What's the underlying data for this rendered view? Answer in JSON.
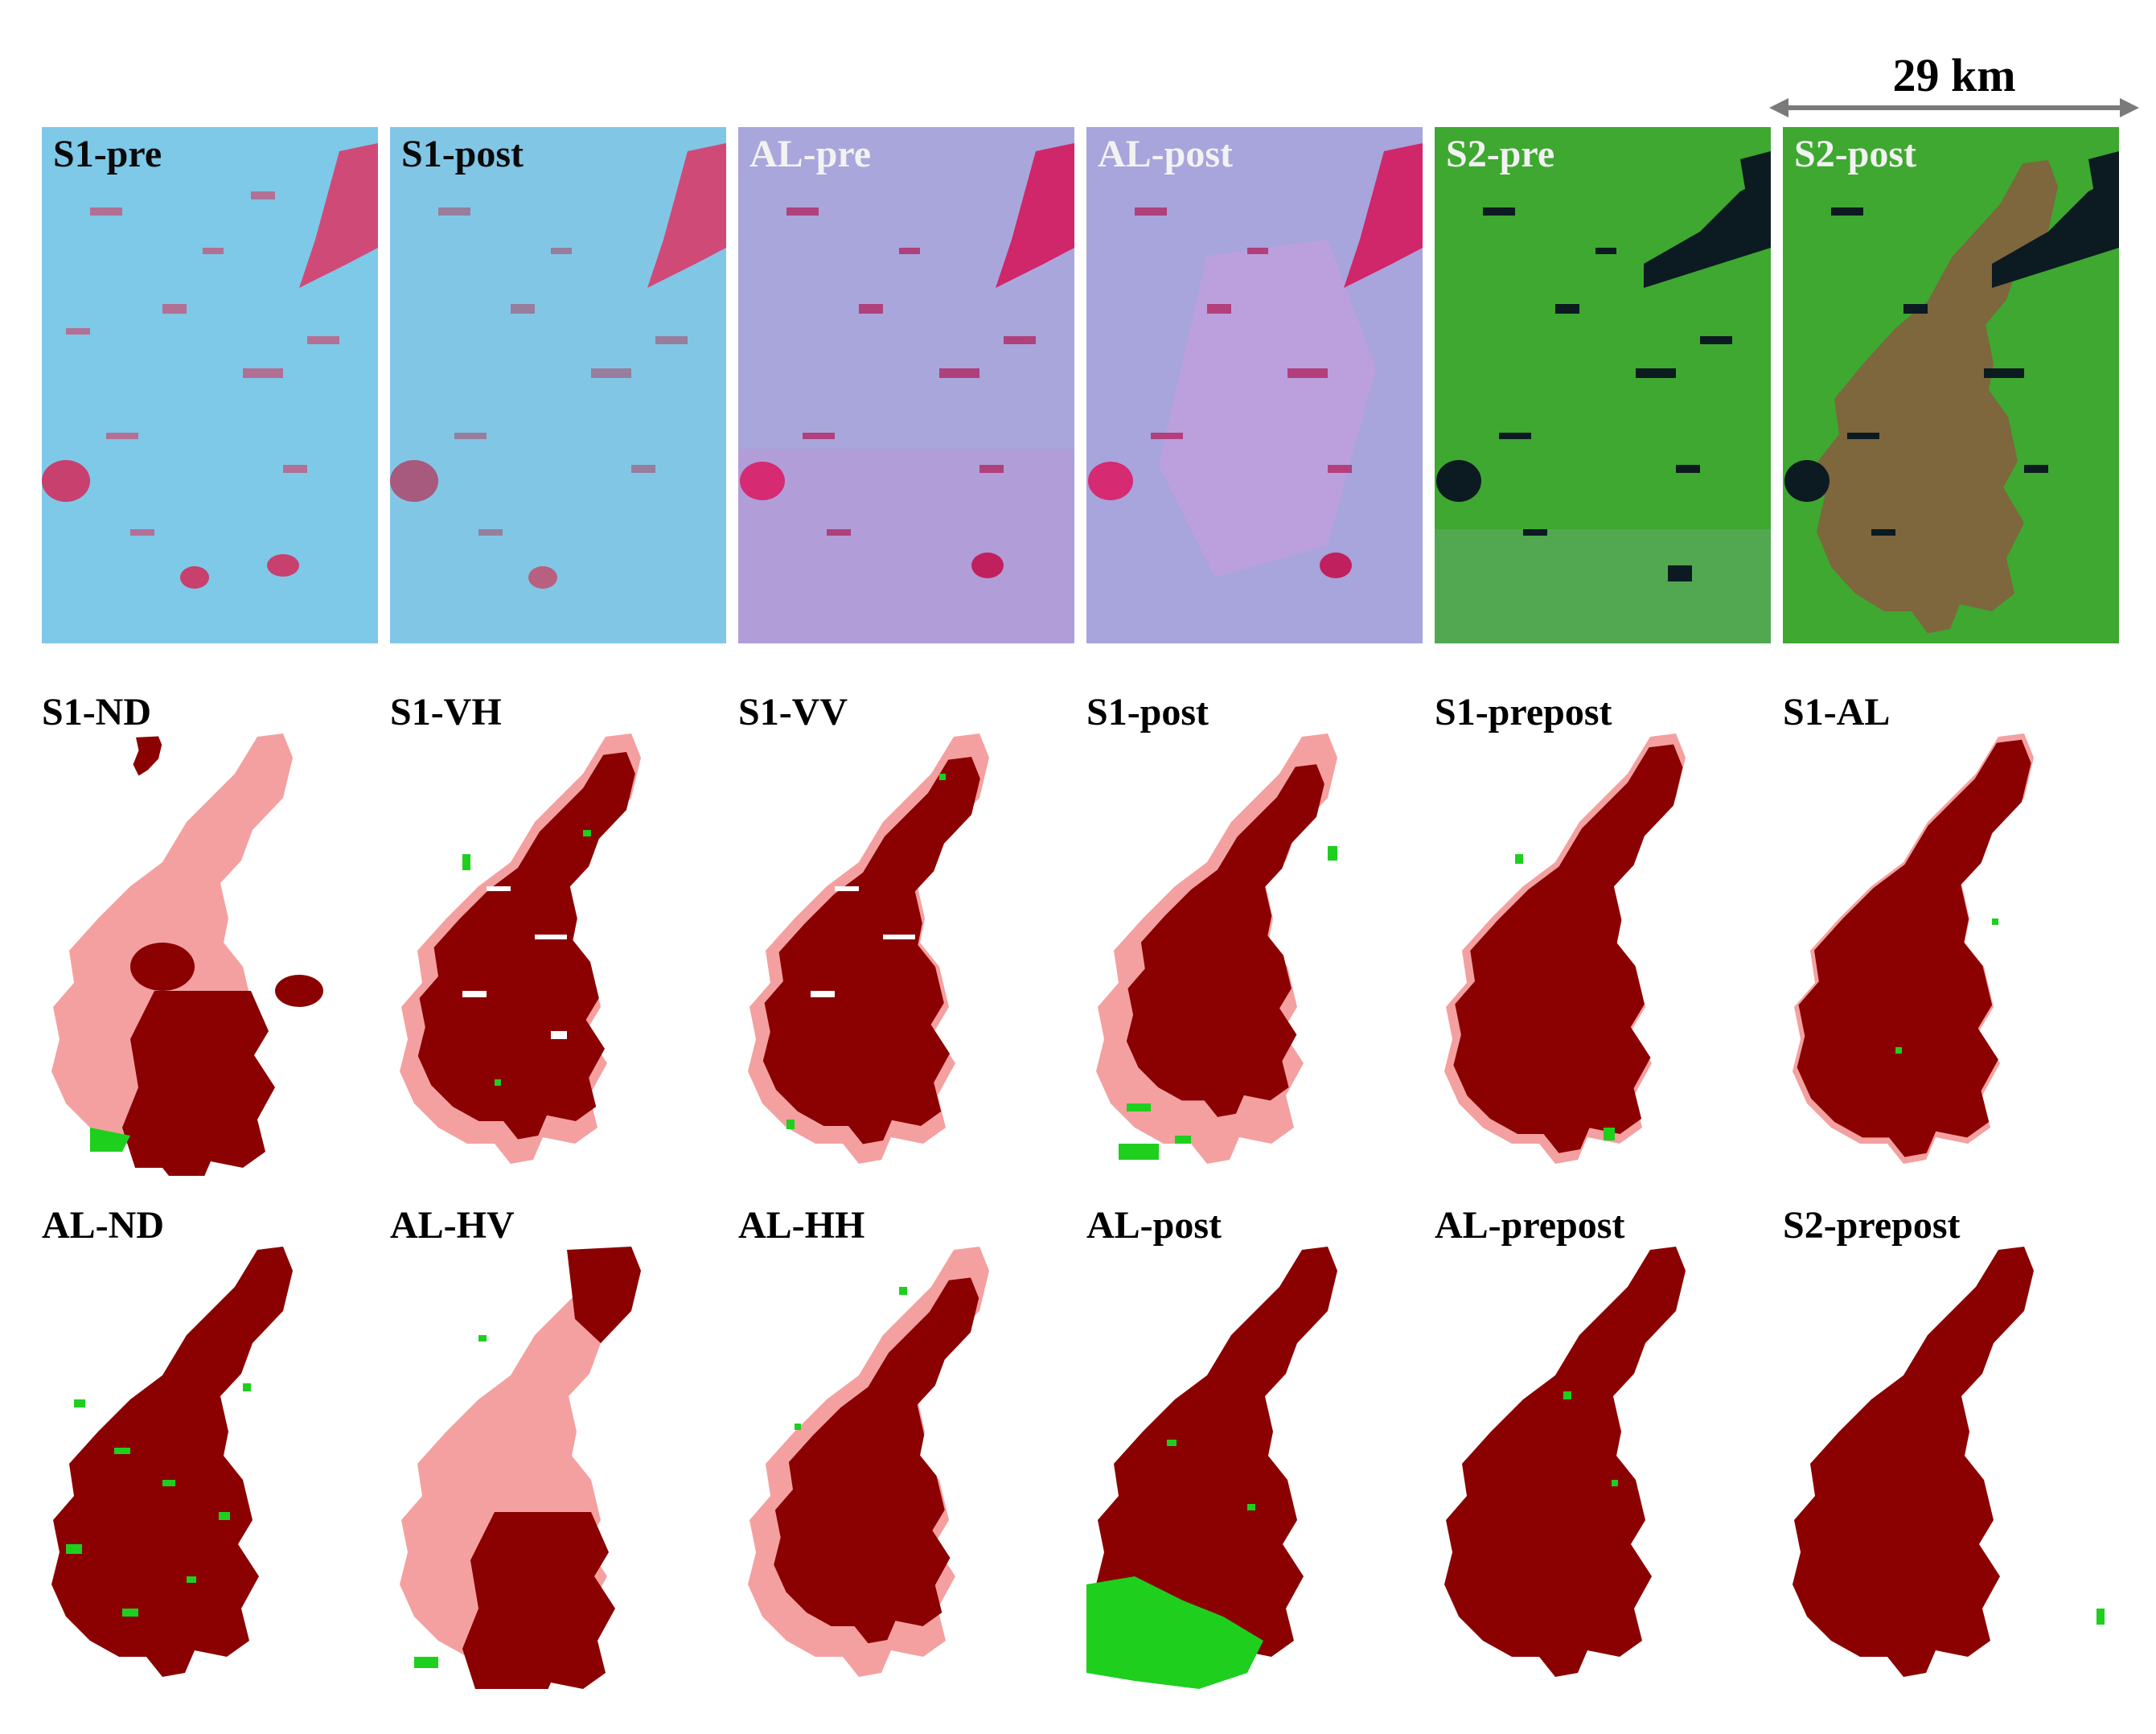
{
  "scale_bar": {
    "label": "29 km"
  },
  "imagery_panels": [
    {
      "label": "S1-pre",
      "label_color": "#0a0a0a"
    },
    {
      "label": "S1-post",
      "label_color": "#0a0a0a"
    },
    {
      "label": "AL-pre",
      "label_color": "#f2f2f2"
    },
    {
      "label": "AL-post",
      "label_color": "#f2f2f2"
    },
    {
      "label": "S2-pre",
      "label_color": "#f2f2f2"
    },
    {
      "label": "S2-post",
      "label_color": "#f2f2f2"
    }
  ],
  "map_rows": [
    [
      {
        "label": "S1-ND"
      },
      {
        "label": "S1-VH"
      },
      {
        "label": "S1-VV"
      },
      {
        "label": "S1-post"
      },
      {
        "label": "S1-prepost"
      },
      {
        "label": "S1-AL"
      }
    ],
    [
      {
        "label": "AL-ND"
      },
      {
        "label": "AL-HV"
      },
      {
        "label": "AL-HH"
      },
      {
        "label": "AL-post"
      },
      {
        "label": "AL-prepost"
      },
      {
        "label": "S2-prepost"
      }
    ]
  ],
  "colors": {
    "burned_agreement": "#8b0000",
    "omission": "#f4a0a0",
    "commission": "#1ecf1e"
  }
}
